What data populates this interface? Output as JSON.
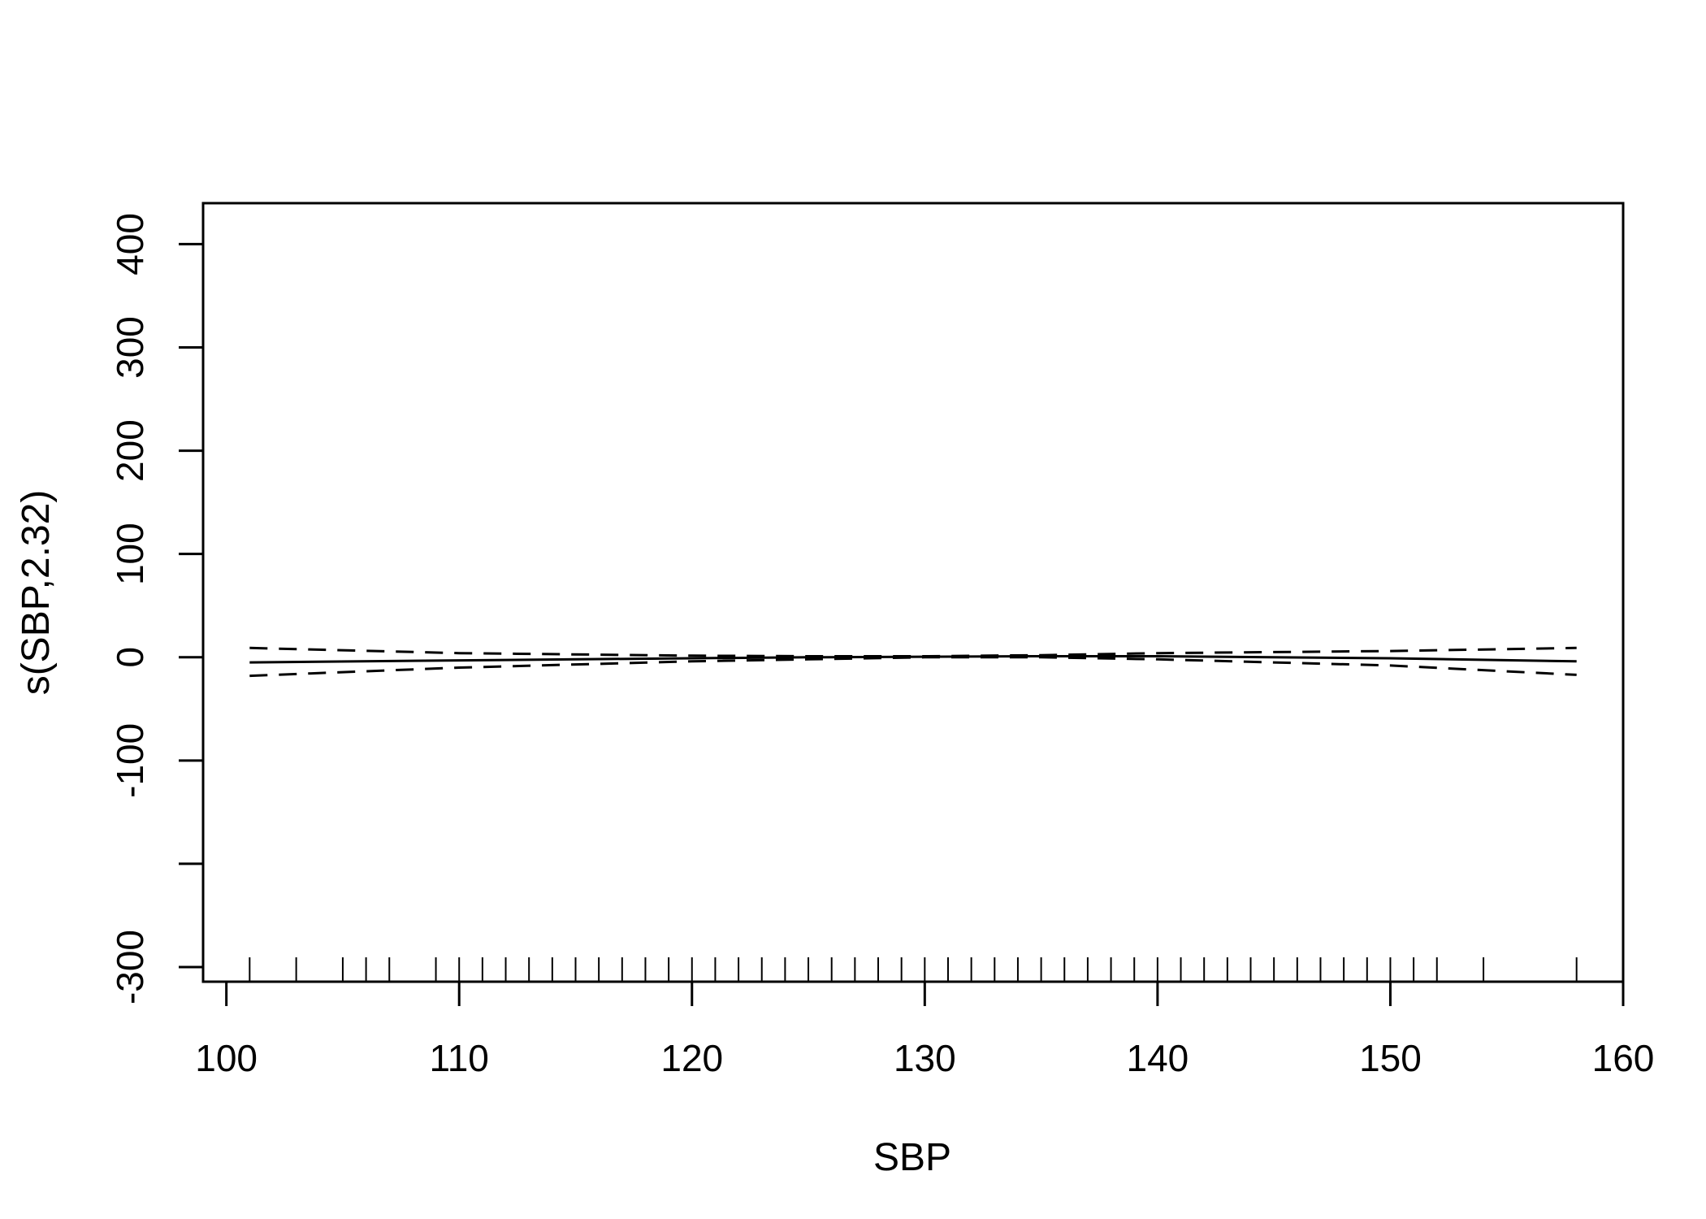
{
  "chart_data": {
    "type": "line",
    "title": "",
    "xlabel": "SBP",
    "ylabel": "s(SBP,2.32)",
    "xlim": [
      99,
      160
    ],
    "ylim": [
      -300,
      420
    ],
    "x_ticks": [
      100,
      110,
      120,
      130,
      140,
      150,
      160
    ],
    "x_tick_labels": [
      "100",
      "110",
      "120",
      "130",
      "140",
      "150",
      "160"
    ],
    "y_ticks": [
      -300,
      -200,
      -100,
      0,
      100,
      200,
      300,
      400
    ],
    "y_tick_labels": [
      "-300",
      "",
      "-100",
      "0",
      "100",
      "200",
      "300",
      "400"
    ],
    "grid": false,
    "series": [
      {
        "style": "solid",
        "x": [
          101,
          110,
          120,
          125,
          130,
          135,
          140,
          150,
          158
        ],
        "y": [
          -5,
          -3,
          -1,
          0,
          0.5,
          1,
          1,
          -1,
          -4
        ]
      },
      {
        "style": "dashed",
        "x": [
          101,
          110,
          120,
          125,
          130,
          135,
          140,
          150,
          158
        ],
        "y": [
          9,
          4,
          1.5,
          1,
          1,
          2,
          4,
          6,
          9
        ]
      },
      {
        "style": "dashed",
        "x": [
          101,
          110,
          120,
          125,
          130,
          135,
          140,
          150,
          158
        ],
        "y": [
          -18,
          -10,
          -4,
          -2,
          0,
          0,
          -2,
          -8,
          -17
        ]
      }
    ],
    "rug": [
      101,
      103,
      105,
      106,
      107,
      109,
      110,
      111,
      112,
      113,
      114,
      115,
      116,
      117,
      118,
      119,
      120,
      121,
      122,
      123,
      124,
      125,
      126,
      127,
      128,
      129,
      130,
      131,
      132,
      133,
      134,
      135,
      136,
      137,
      138,
      139,
      140,
      141,
      142,
      143,
      144,
      145,
      146,
      147,
      148,
      149,
      150,
      151,
      152,
      154,
      158
    ]
  }
}
